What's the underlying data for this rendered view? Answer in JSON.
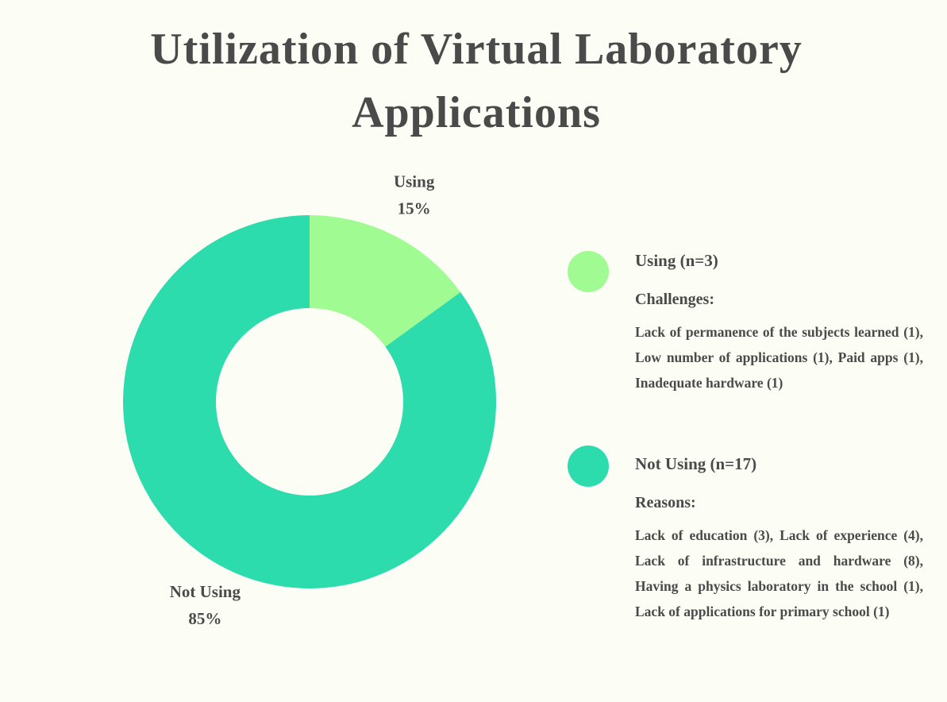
{
  "chart_data": {
    "type": "pie",
    "donut": true,
    "title": "Utilization of Virtual Laboratory Applications",
    "categories": [
      "Using",
      "Not Using"
    ],
    "values": [
      15,
      85
    ],
    "value_labels": [
      "15%",
      "85%"
    ],
    "colors": [
      "#a0fc92",
      "#2ddcac"
    ],
    "legend": [
      {
        "title": "Using (n=3)",
        "heading": "Challenges:",
        "text": "Lack of permanence of the subjects learned (1), Low number of applications (1), Paid apps (1), Inadequate hardware (1)"
      },
      {
        "title": "Not Using (n=17)",
        "heading": "Reasons:",
        "text": "Lack of education (3), Lack of experience (4), Lack of infrastructure and hardware (8), Having a physics laboratory in the school (1), Lack of applications for primary school (1)"
      }
    ]
  }
}
